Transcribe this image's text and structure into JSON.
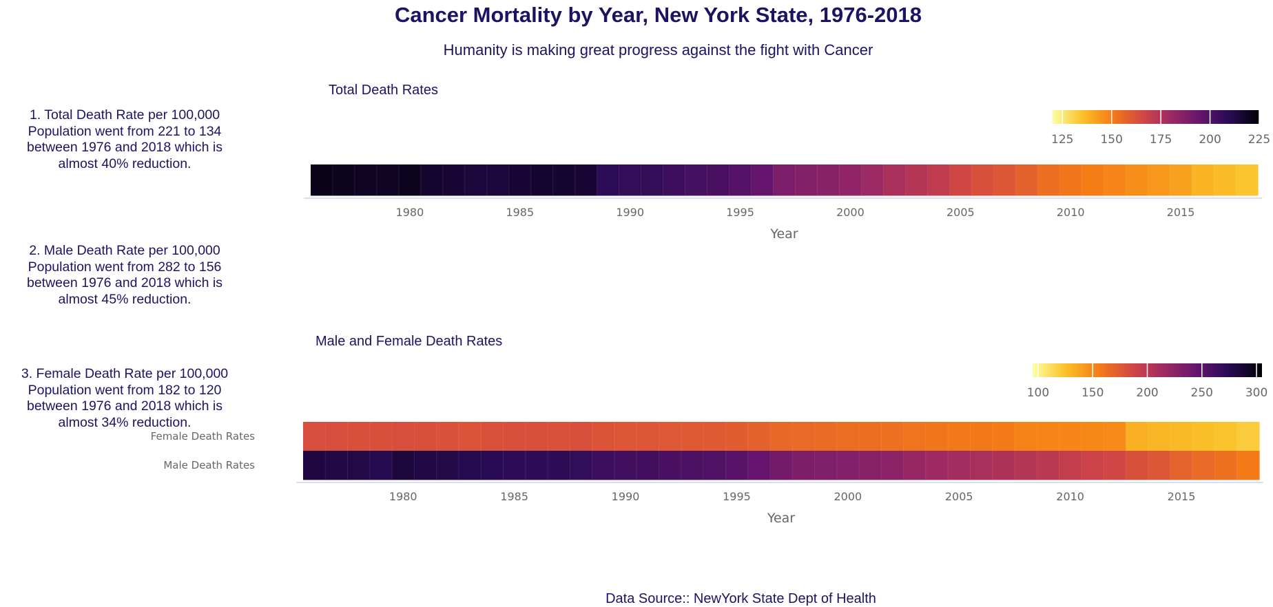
{
  "header": {
    "title": "Cancer Mortality by Year, New York State, 1976-2018",
    "subtitle": "Humanity is making great progress against the fight with Cancer"
  },
  "notes": [
    [
      "1. Total Death Rate per 100,000",
      "Population went from 221 to 134",
      "between 1976 and 2018 which is",
      "almost 40% reduction."
    ],
    [
      "2. Male Death Rate per 100,000",
      "Population went from 282 to 156",
      "between 1976 and 2018 which is",
      "almost 45% reduction."
    ],
    [
      "3. Female Death Rate per 100,000",
      "Population went from 182 to 120",
      "between 1976 and 2018 which is",
      "almost 34% reduction."
    ]
  ],
  "footer": {
    "source": "Data Source:: NewYork State Dept of Health"
  },
  "chart_data": [
    {
      "type": "heatmap",
      "title": "Total Death Rates",
      "xlabel": "Year",
      "x": [
        1976,
        1977,
        1978,
        1979,
        1980,
        1981,
        1982,
        1983,
        1984,
        1985,
        1986,
        1987,
        1988,
        1989,
        1990,
        1991,
        1992,
        1993,
        1994,
        1995,
        1996,
        1997,
        1998,
        1999,
        2000,
        2001,
        2002,
        2003,
        2004,
        2005,
        2006,
        2007,
        2008,
        2009,
        2010,
        2011,
        2012,
        2013,
        2014,
        2015,
        2016,
        2017,
        2018
      ],
      "xticks": [
        1980,
        1985,
        1990,
        1995,
        2000,
        2005,
        2010,
        2015
      ],
      "series": [
        {
          "values": [
            221,
            220,
            219,
            219,
            220,
            217,
            216,
            215,
            215,
            216,
            217,
            217,
            216,
            209,
            207,
            207,
            205,
            203,
            202,
            199,
            195,
            189,
            187,
            186,
            184,
            181,
            177,
            174,
            171,
            166,
            163,
            161,
            158,
            154,
            152,
            150,
            148,
            146,
            144,
            142,
            138,
            136,
            134
          ]
        }
      ],
      "colorscale": "inferno-reversed",
      "colorbar": {
        "range": [
          120,
          225
        ],
        "ticks": [
          125,
          150,
          175,
          200,
          225
        ]
      }
    },
    {
      "type": "heatmap",
      "title": "Male and Female Death Rates",
      "xlabel": "Year",
      "categories": [
        "Female Death Rates",
        "Male Death Rates"
      ],
      "x": [
        1976,
        1977,
        1978,
        1979,
        1980,
        1981,
        1982,
        1983,
        1984,
        1985,
        1986,
        1987,
        1988,
        1989,
        1990,
        1991,
        1992,
        1993,
        1994,
        1995,
        1996,
        1997,
        1998,
        1999,
        2000,
        2001,
        2002,
        2003,
        2004,
        2005,
        2006,
        2007,
        2008,
        2009,
        2010,
        2011,
        2012,
        2013,
        2014,
        2015,
        2016,
        2017,
        2018
      ],
      "xticks": [
        1980,
        1985,
        1990,
        1995,
        2000,
        2005,
        2010,
        2015
      ],
      "series": [
        {
          "name": "Female Death Rates",
          "values": [
            182,
            182,
            181,
            181,
            182,
            181,
            180,
            179,
            180,
            181,
            181,
            180,
            181,
            178,
            177,
            177,
            176,
            175,
            175,
            173,
            171,
            167,
            166,
            165,
            164,
            163,
            162,
            160,
            159,
            158,
            157,
            156,
            153,
            152,
            151,
            150,
            149,
            132,
            130,
            129,
            126,
            124,
            120
          ]
        },
        {
          "name": "Male Death Rates",
          "values": [
            282,
            280,
            279,
            276,
            284,
            280,
            279,
            277,
            275,
            272,
            272,
            271,
            270,
            265,
            263,
            262,
            259,
            257,
            256,
            251,
            245,
            238,
            232,
            231,
            230,
            227,
            225,
            219,
            215,
            212,
            209,
            206,
            203,
            200,
            195,
            190,
            187,
            181,
            177,
            170,
            166,
            162,
            156
          ]
        }
      ],
      "colorscale": "inferno-reversed",
      "colorbar": {
        "range": [
          95,
          305
        ],
        "ticks": [
          100,
          150,
          200,
          250,
          300
        ]
      }
    }
  ]
}
